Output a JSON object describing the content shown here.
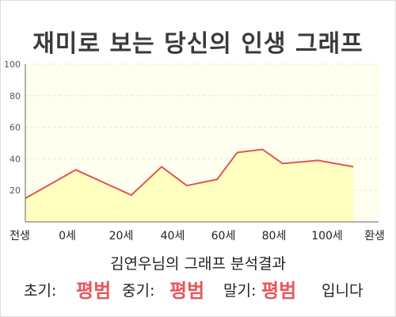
{
  "title": "재미로 보는 당신의 인생 그래프",
  "summary": "김연우님의 그래프 분석결과",
  "results": {
    "early_label": "초기:",
    "early_value": "평범",
    "mid_label": "중기:",
    "mid_value": "평범",
    "late_label": "말기:",
    "late_value": "평범",
    "suffix": "입니다"
  },
  "colors": {
    "line": "#e05555",
    "fill": "#ffffc0",
    "plot_bg": "#fffff0",
    "grid": "#e8e8d8",
    "accent": "#e8555a"
  },
  "chart_data": {
    "type": "area",
    "x_ticks": [
      "전생",
      "0세",
      "20세",
      "40세",
      "60세",
      "80세",
      "100세",
      "환생"
    ],
    "y_ticks": [
      20,
      40,
      60,
      80,
      100
    ],
    "ylim": [
      0,
      100
    ],
    "x": [
      -20,
      0,
      22,
      34,
      44,
      56,
      64,
      74,
      82,
      96,
      110
    ],
    "values": [
      15,
      33,
      17,
      35,
      23,
      27,
      44,
      46,
      37,
      39,
      35
    ],
    "grid": true
  }
}
